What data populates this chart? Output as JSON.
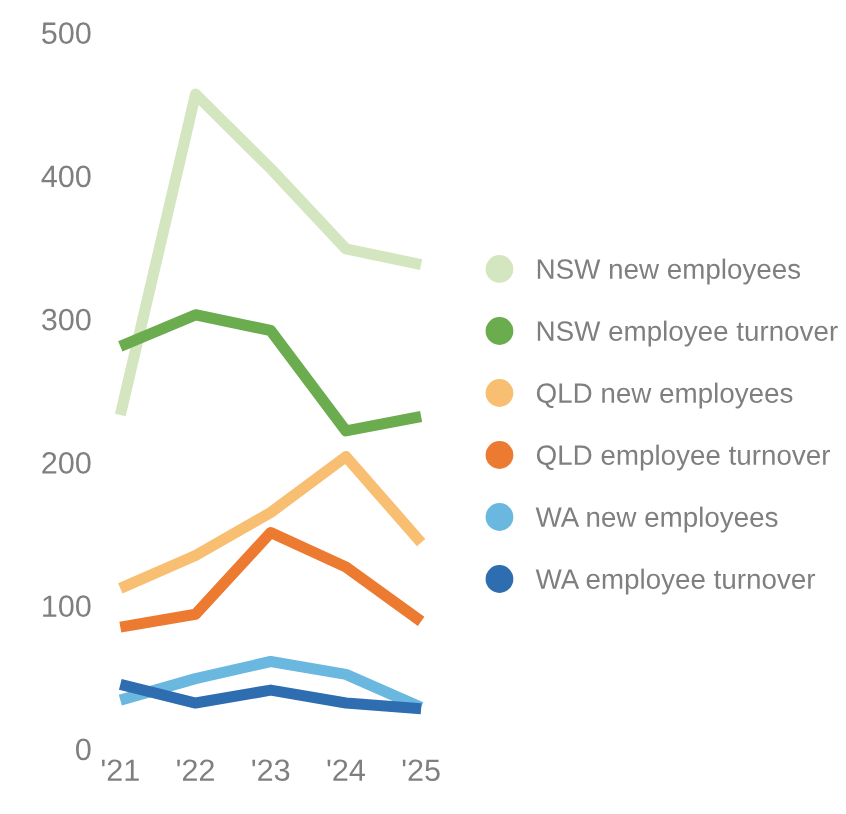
{
  "chart_data": {
    "type": "line",
    "categories": [
      "'21",
      "'22",
      "'23",
      "'24",
      "'25"
    ],
    "series": [
      {
        "name": "NSW new employees",
        "color": "#d4e6bf",
        "values": [
          233,
          457,
          405,
          349,
          338
        ]
      },
      {
        "name": "NSW employee turnover",
        "color": "#6aac4e",
        "values": [
          281,
          303,
          292,
          222,
          232
        ]
      },
      {
        "name": "QLD new employees",
        "color": "#f8bf72",
        "values": [
          112,
          135,
          165,
          204,
          144
        ]
      },
      {
        "name": "QLD employee turnover",
        "color": "#ec7a30",
        "values": [
          85,
          94,
          151,
          127,
          89
        ]
      },
      {
        "name": "WA new employees",
        "color": "#6ab8e0",
        "values": [
          34,
          49,
          61,
          52,
          29
        ]
      },
      {
        "name": "WA employee turnover",
        "color": "#2e6db0",
        "values": [
          45,
          32,
          41,
          32,
          28
        ]
      }
    ],
    "ylim": [
      0,
      500
    ],
    "yticks": [
      0,
      100,
      200,
      300,
      400,
      500
    ],
    "grid": false,
    "legend": "right",
    "marker": "none",
    "line_style": "solid"
  }
}
